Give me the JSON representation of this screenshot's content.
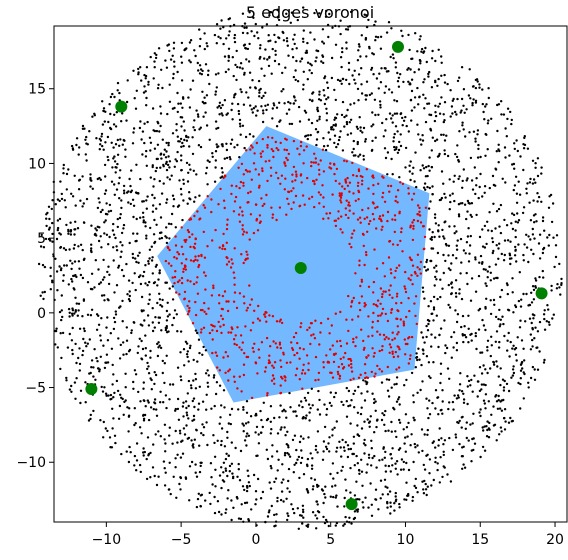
{
  "chart_data": {
    "type": "scatter",
    "title": "5 edges voronoi",
    "xlim": [
      -13.5,
      20.8
    ],
    "ylim": [
      -14,
      19.2
    ],
    "x_ticks": [
      -10,
      -5,
      0,
      5,
      10,
      15,
      20
    ],
    "y_ticks": [
      -10,
      -5,
      0,
      5,
      10,
      15
    ],
    "x_tick_labels": [
      "−10",
      "−5",
      "0",
      "5",
      "10",
      "15",
      "20"
    ],
    "y_tick_labels": [
      "−10",
      "−5",
      "0",
      "5",
      "10",
      "15"
    ],
    "grid": false,
    "center_point": {
      "x": 3.0,
      "y": 3.0,
      "color": "#008000"
    },
    "outer_points": [
      {
        "x": 9.5,
        "y": 17.8
      },
      {
        "x": -9.0,
        "y": 13.8
      },
      {
        "x": 19.1,
        "y": 1.3
      },
      {
        "x": -11.0,
        "y": -5.1
      },
      {
        "x": 6.4,
        "y": -12.8
      }
    ],
    "voronoi_cell": {
      "vertices": [
        [
          0.7,
          12.5
        ],
        [
          11.6,
          8.0
        ],
        [
          10.6,
          -3.8
        ],
        [
          -1.5,
          -6.0
        ],
        [
          -6.6,
          3.8
        ]
      ],
      "color": "#74b9ff"
    },
    "point_cloud": {
      "description_center": [
        3.0,
        3.0
      ],
      "radius": 17.5,
      "inside_color": "#e00000",
      "outside_color": "#000000"
    },
    "colors": {
      "green": "#008000",
      "fill": "#74b9ff",
      "red": "#e00000",
      "black": "#000000"
    }
  }
}
